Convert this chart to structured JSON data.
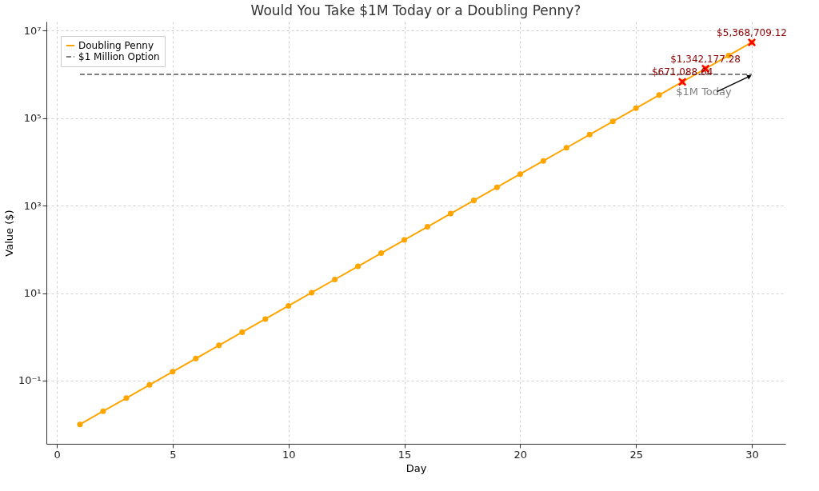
{
  "chart_data": {
    "type": "line",
    "title": "Would You Take $1M Today or a Doubling Penny?",
    "xlabel": "Day",
    "ylabel": "Value ($)",
    "log": "y",
    "grid": true,
    "legend": "top left",
    "xlim": [
      -0.45,
      31.45
    ],
    "xticks": [
      0,
      5,
      10,
      15,
      20,
      25,
      30
    ],
    "ylim": [
      0.0036,
      16000000
    ],
    "yticks": [
      {
        "value": 0.1,
        "label": "10⁻¹"
      },
      {
        "value": 10,
        "label": "10¹"
      },
      {
        "value": 1000,
        "label": "10³"
      },
      {
        "value": 100000,
        "label": "10⁵"
      },
      {
        "value": 10000000,
        "label": "10⁷"
      }
    ],
    "series": [
      {
        "name": "Doubling Penny",
        "color": "#ffa500",
        "marker": "circle",
        "line_style": "solid",
        "x": [
          1,
          2,
          3,
          4,
          5,
          6,
          7,
          8,
          9,
          10,
          11,
          12,
          13,
          14,
          15,
          16,
          17,
          18,
          19,
          20,
          21,
          22,
          23,
          24,
          25,
          26,
          27,
          28,
          29,
          30
        ],
        "values": [
          0.01,
          0.02,
          0.04,
          0.08,
          0.16,
          0.32,
          0.64,
          1.28,
          2.56,
          5.12,
          10.24,
          20.48,
          40.96,
          81.92,
          163.84,
          327.68,
          655.36,
          1310.72,
          2621.44,
          5242.88,
          10485.76,
          20971.52,
          41943.04,
          83886.08,
          167772.16,
          335544.32,
          671088.64,
          1342177.28,
          2684354.56,
          5368709.12
        ]
      },
      {
        "name": "$1 Million Option",
        "color": "#808080",
        "marker": "none",
        "line_style": "dashed",
        "x": [
          1,
          30
        ],
        "values": [
          1000000,
          1000000
        ]
      },
      {
        "type": "scatter",
        "color": "#ff0000",
        "marker": "cross",
        "x": [
          27,
          28,
          30
        ],
        "values": [
          671088.64,
          1342177.28,
          5368709.12
        ],
        "value_labels": [
          "$671,088.64",
          "$1,342,177.28",
          "$5,368,709.12"
        ]
      }
    ],
    "annotations": [
      {
        "text": "$1M Today",
        "x": 30,
        "y": 1000000
      }
    ]
  }
}
